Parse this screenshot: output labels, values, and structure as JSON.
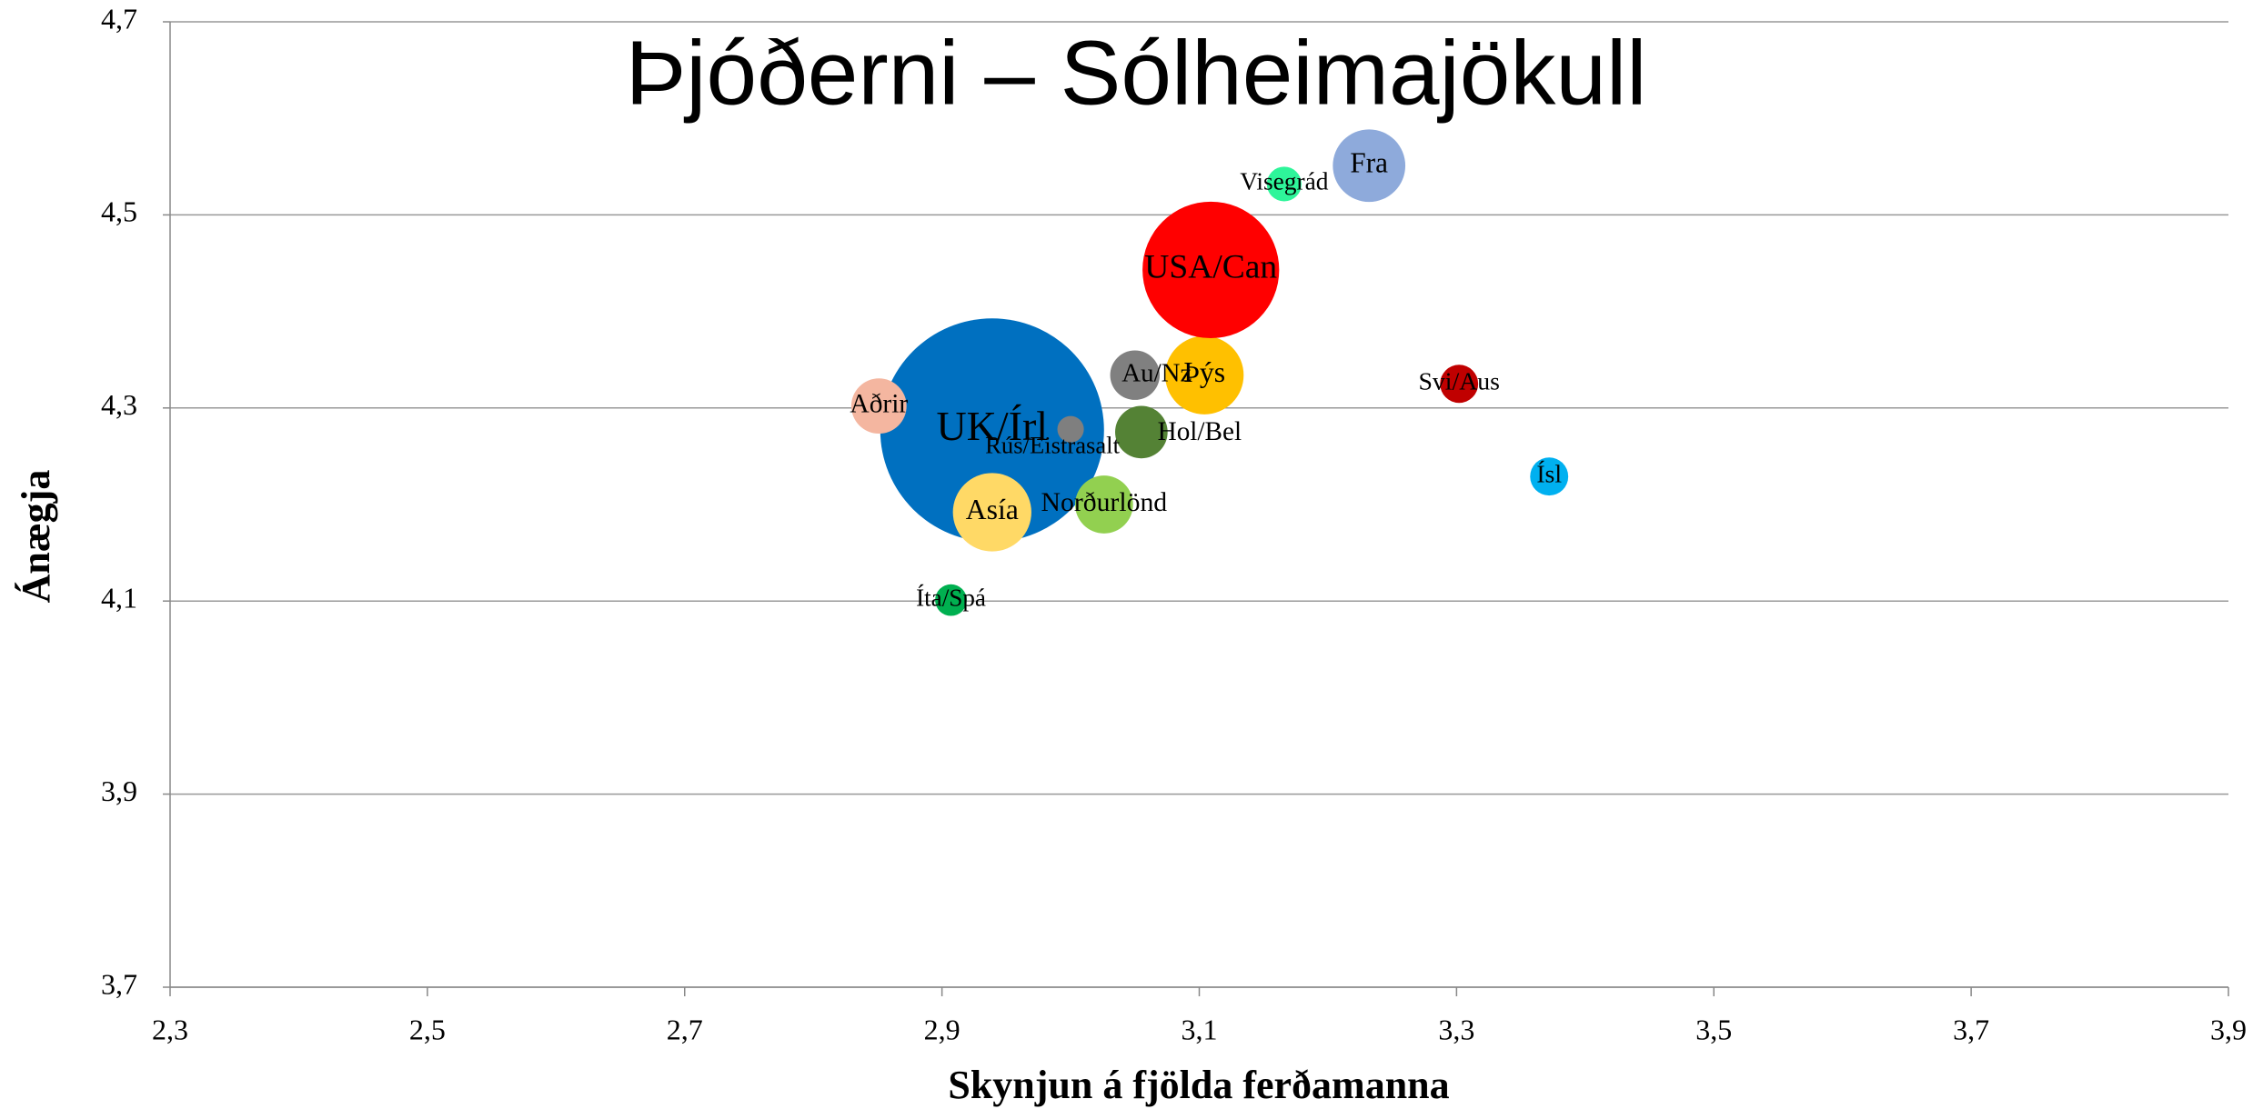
{
  "chart_data": {
    "type": "bubble",
    "title": "Þjóðerni – Sólheimajökull",
    "x_label": "Skynjun á fjölda ferðamanna",
    "y_label": "Ánægja",
    "xlim": [
      2.3,
      3.9
    ],
    "xticks": [
      {
        "value": 2.3,
        "label": "2,3"
      },
      {
        "value": 2.5,
        "label": "2,5"
      },
      {
        "value": 2.7,
        "label": "2,7"
      },
      {
        "value": 2.9,
        "label": "2,9"
      },
      {
        "value": 3.1,
        "label": "3,1"
      },
      {
        "value": 3.3,
        "label": "3,3"
      },
      {
        "value": 3.5,
        "label": "3,5"
      },
      {
        "value": 3.7,
        "label": "3,7"
      },
      {
        "value": 3.9,
        "label": "3,9"
      }
    ],
    "ylim": [
      3.7,
      4.7
    ],
    "yticks": [
      {
        "value": 3.7,
        "label": "3,7"
      },
      {
        "value": 3.9,
        "label": "3,9"
      },
      {
        "value": 4.1,
        "label": "4,1"
      },
      {
        "value": 4.3,
        "label": "4,3"
      },
      {
        "value": 4.5,
        "label": "4,5"
      },
      {
        "value": 4.7,
        "label": "4,7"
      }
    ],
    "grid": true,
    "series": [
      {
        "name": "UK/Írl",
        "color": "#0070c0",
        "x": [
          2.939
        ],
        "values": [
          4.277
        ],
        "sizes": [
          100
        ]
      },
      {
        "name": "Aðrir",
        "color": "#f4b6a0",
        "x": [
          2.851
        ],
        "values": [
          4.302
        ],
        "sizes": [
          6.1
        ]
      },
      {
        "name": "Rús/Eistrasalt",
        "color": "#7f7f7f",
        "x": [
          3.0
        ],
        "values": [
          4.278
        ],
        "sizes": [
          1.4
        ]
      },
      {
        "name": "Asía",
        "color": "#ffd966",
        "x": [
          2.939
        ],
        "values": [
          4.192
        ],
        "sizes": [
          12.3
        ]
      },
      {
        "name": "Norðurlönd",
        "color": "#92d050",
        "x": [
          3.026
        ],
        "values": [
          4.2
        ],
        "sizes": [
          6.7
        ]
      },
      {
        "name": "Íta/Spá",
        "color": "#00b050",
        "x": [
          2.907
        ],
        "values": [
          4.101
        ],
        "sizes": [
          2.0
        ]
      },
      {
        "name": "Au/Nz",
        "color": "#808080",
        "x": [
          3.05
        ],
        "values": [
          4.334
        ],
        "sizes": [
          4.9
        ]
      },
      {
        "name": "Þýs",
        "color": "#ffc000",
        "x": [
          3.104
        ],
        "values": [
          4.334
        ],
        "sizes": [
          12.3
        ]
      },
      {
        "name": "Hol/Bel",
        "color": "#548235",
        "x": [
          3.055
        ],
        "values": [
          4.275
        ],
        "sizes": [
          5.5
        ]
      },
      {
        "name": "USA/Can",
        "color": "#ff0000",
        "x": [
          3.109
        ],
        "values": [
          4.443
        ],
        "sizes": [
          37.3
        ]
      },
      {
        "name": "Visegrád",
        "color": "#2ef59a",
        "x": [
          3.166
        ],
        "values": [
          4.532
        ],
        "sizes": [
          2.4
        ]
      },
      {
        "name": "Fra",
        "color": "#8eaadb",
        "x": [
          3.232
        ],
        "values": [
          4.551
        ],
        "sizes": [
          10.5
        ]
      },
      {
        "name": "Svi/Aus",
        "color": "#c00000",
        "x": [
          3.302
        ],
        "values": [
          4.325
        ],
        "sizes": [
          2.9
        ]
      },
      {
        "name": "Ísl",
        "color": "#00b0f0",
        "x": [
          3.372
        ],
        "values": [
          4.229
        ],
        "sizes": [
          2.9
        ]
      }
    ]
  }
}
